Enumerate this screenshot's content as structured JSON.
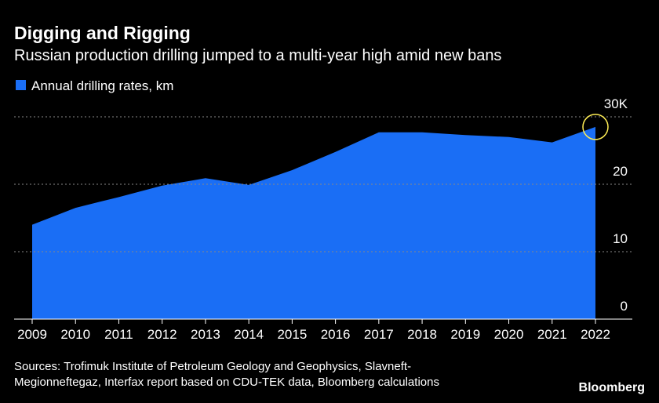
{
  "chart_data": {
    "type": "area",
    "title": "Digging and Rigging",
    "subtitle": "Russian production drilling jumped to a multi-year high amid new bans",
    "categories": [
      "2009",
      "2010",
      "2011",
      "2012",
      "2013",
      "2014",
      "2015",
      "2016",
      "2017",
      "2018",
      "2019",
      "2020",
      "2021",
      "2022"
    ],
    "series": [
      {
        "name": "Annual drilling rates, km",
        "color": "#1a6ef5",
        "values": [
          14.0,
          16.5,
          18.1,
          19.8,
          20.9,
          19.9,
          22.1,
          24.8,
          27.7,
          27.7,
          27.3,
          27.0,
          26.2,
          28.5
        ]
      }
    ],
    "ylim": [
      0,
      30
    ],
    "yticks": [
      0,
      10,
      20,
      {
        "value": 30,
        "label": "30K"
      }
    ],
    "grid": true,
    "source": [
      "Sources: Trofimuk Institute of Petroleum Geology and Geophysics, Slavneft-",
      "Megionneftegaz, Interfax report based on CDU-TEK data, Bloomberg calculations"
    ],
    "brand": "Bloomberg"
  }
}
